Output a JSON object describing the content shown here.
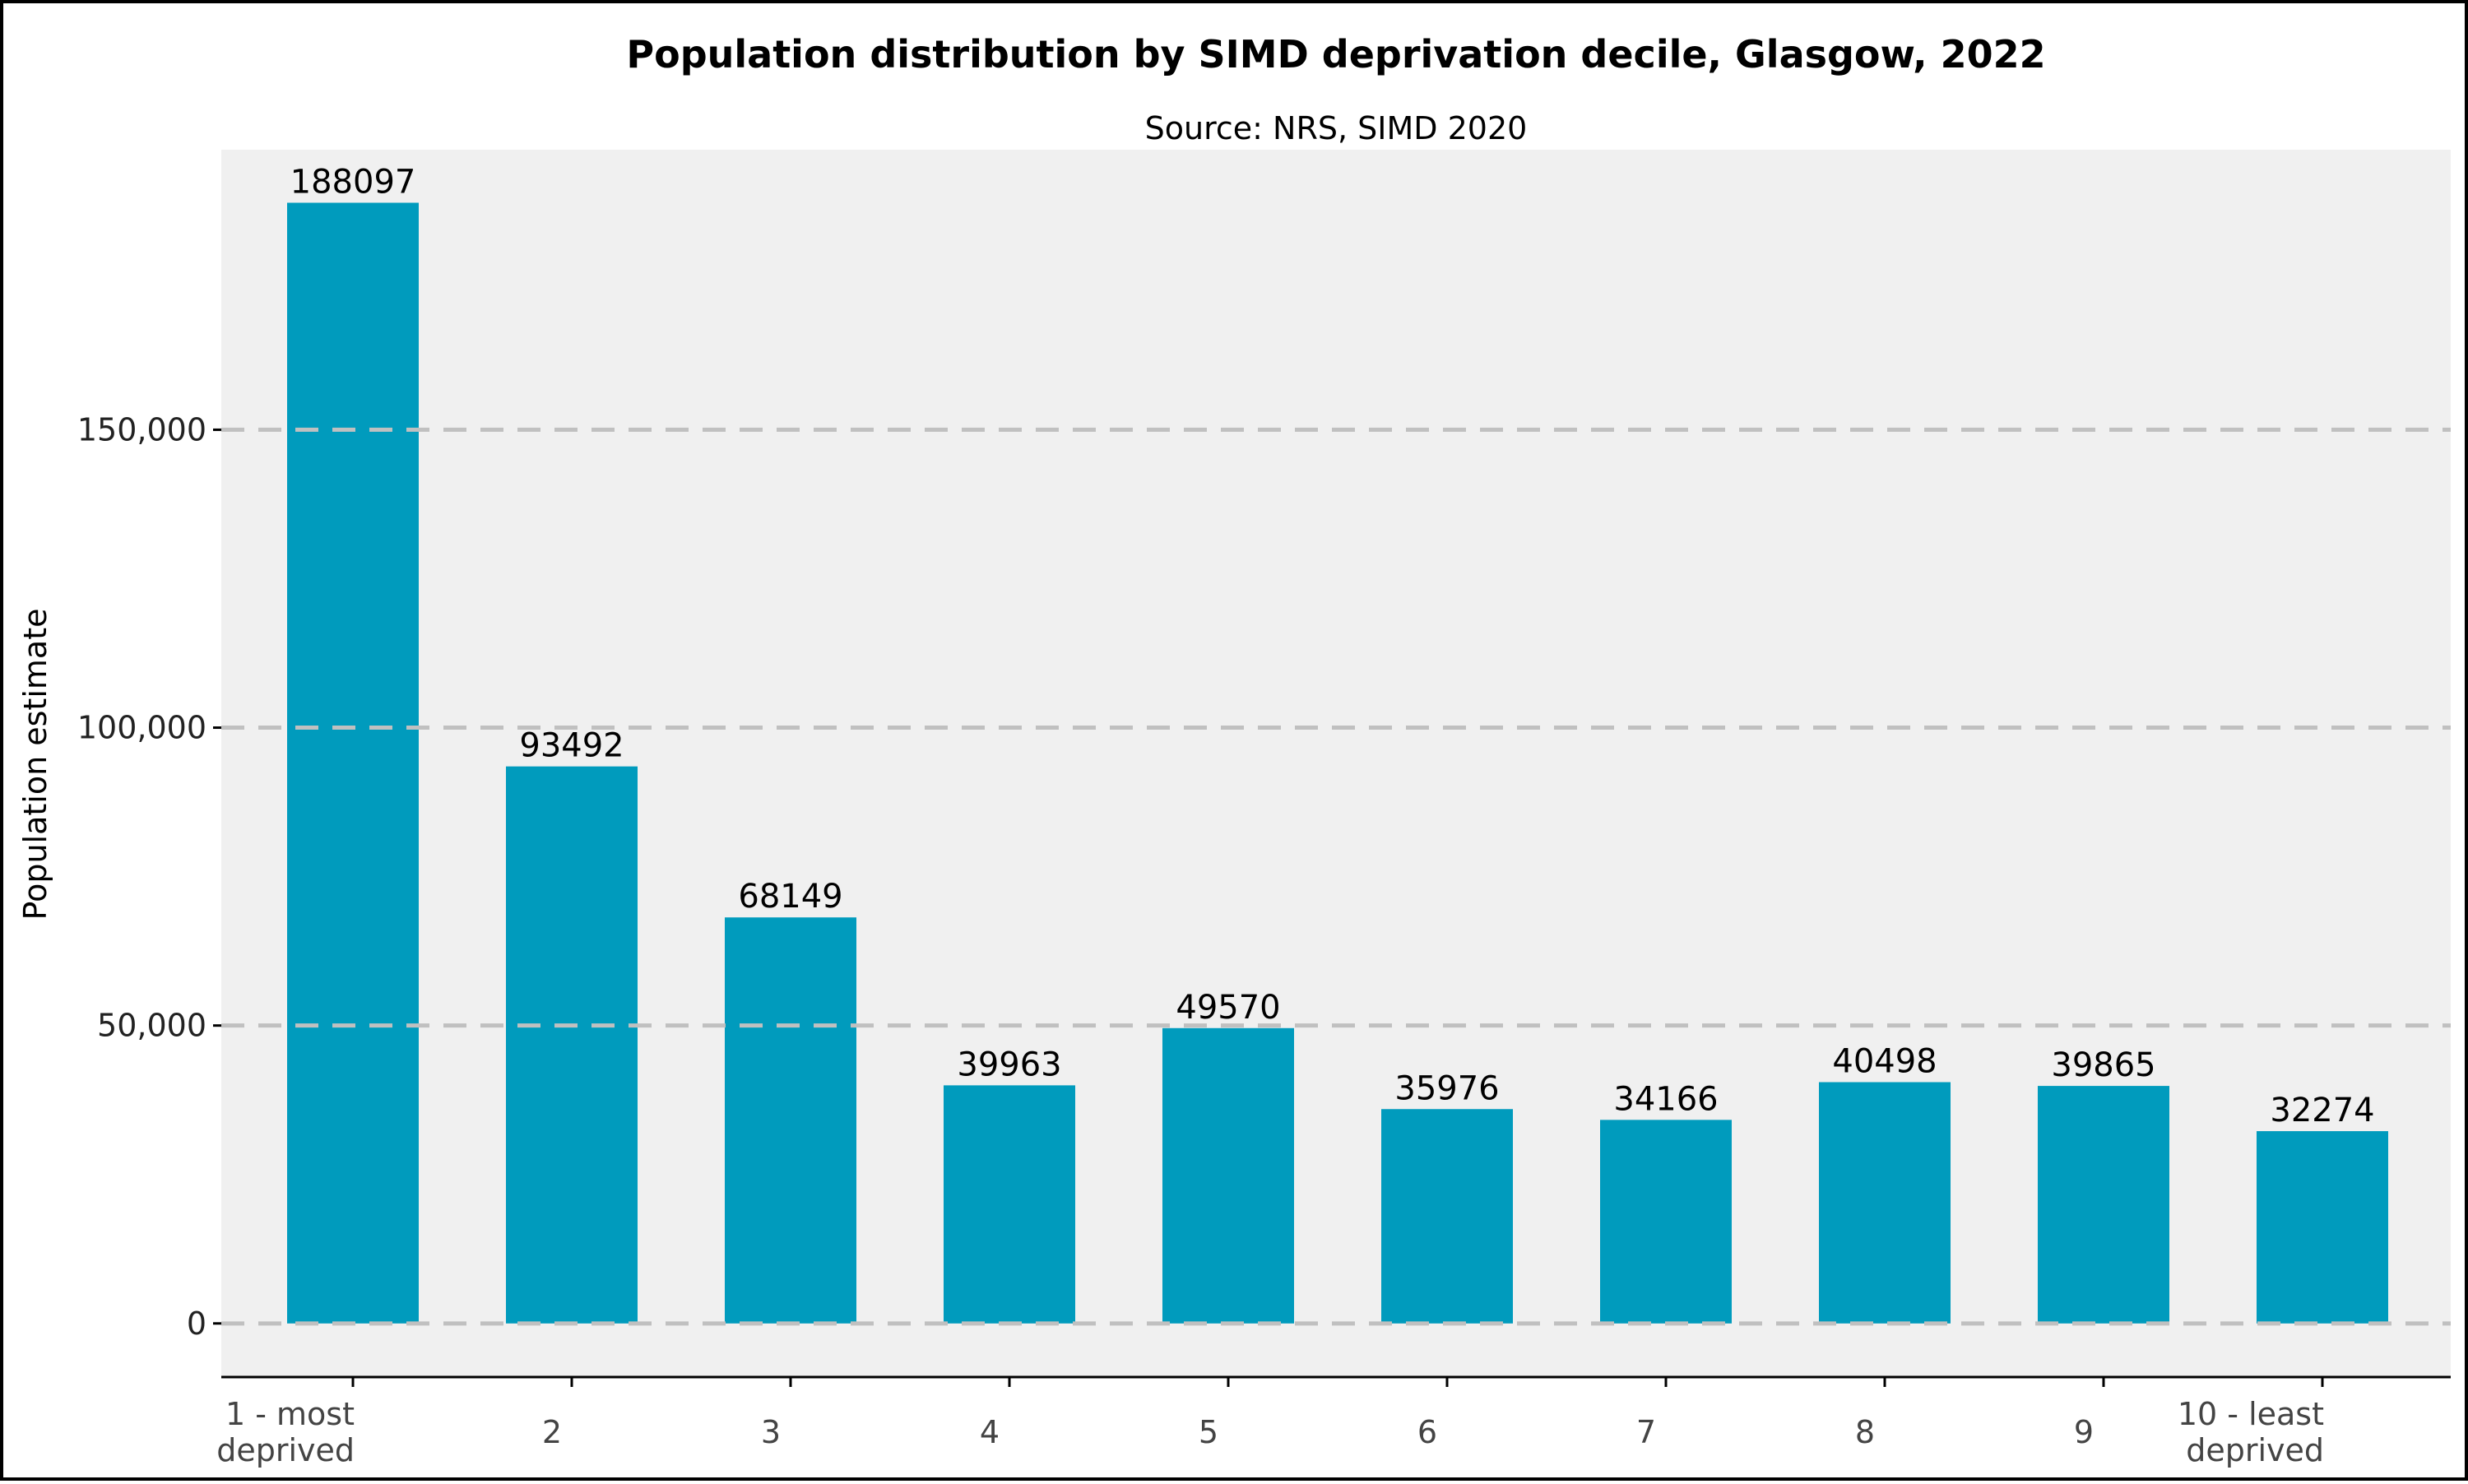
{
  "chart_data": {
    "type": "bar",
    "title": "Population distribution by SIMD deprivation decile, Glasgow, 2022",
    "subtitle": "Source: NRS, SIMD 2020",
    "xlabel": "",
    "ylabel": "Population estimate",
    "categories": [
      [
        "1 - most",
        "deprived"
      ],
      [
        "2"
      ],
      [
        "3"
      ],
      [
        "4"
      ],
      [
        "5"
      ],
      [
        "6"
      ],
      [
        "7"
      ],
      [
        "8"
      ],
      [
        "9"
      ],
      [
        "10 - least",
        "deprived"
      ]
    ],
    "values": [
      188097,
      93492,
      68149,
      39963,
      49570,
      35976,
      34166,
      40498,
      39865,
      32274
    ],
    "value_labels": [
      "188097",
      "93492",
      "68149",
      "39963",
      "49570",
      "35976",
      "34166",
      "40498",
      "39865",
      "32274"
    ],
    "ylim": [
      -9000,
      197000
    ],
    "yticks": [
      0,
      50000,
      100000,
      150000
    ],
    "ytick_labels": [
      "0",
      "50,000",
      "100,000",
      "150,000"
    ],
    "grid": "horizontal dashed",
    "legend": "none",
    "colors": {
      "bar": "#009BBD",
      "plot_background": "#F0F0F0",
      "grid": "#C0C0C0",
      "axis": "#000000"
    }
  }
}
